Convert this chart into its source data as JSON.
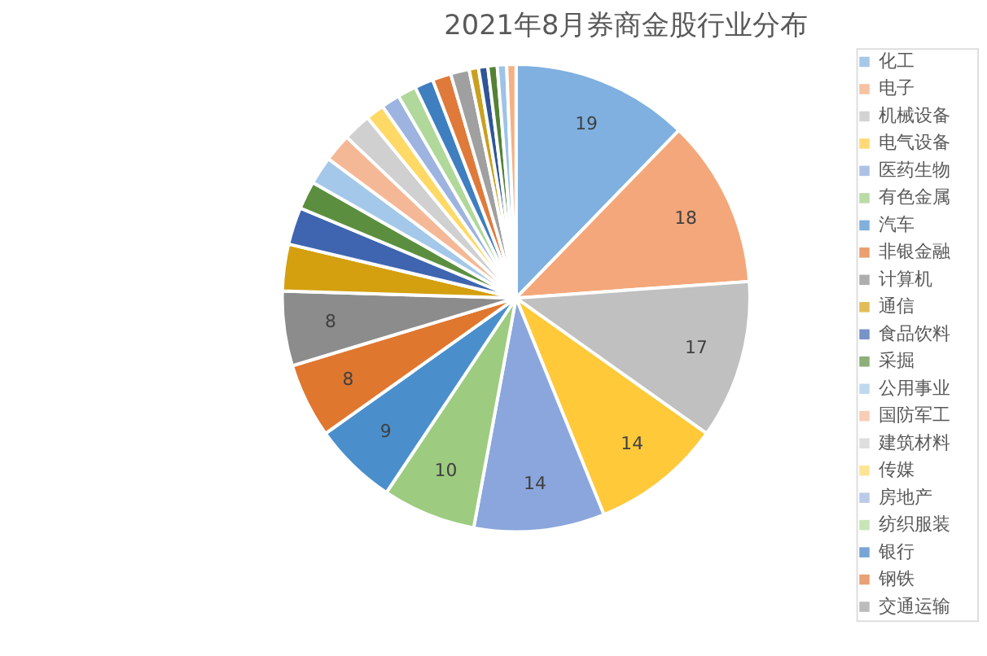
{
  "chart_data": {
    "type": "pie",
    "title": "2021年8月券商金股行业分布",
    "categories": [
      "化工",
      "电子",
      "机械设备",
      "电气设备",
      "医药生物",
      "有色金属",
      "汽车",
      "非银金融",
      "计算机",
      "通信",
      "食品饮料",
      "采掘",
      "公用事业",
      "国防军工",
      "建筑材料",
      "传媒",
      "房地产",
      "纺织服装",
      "银行",
      "钢铁",
      "交通运输",
      null,
      null,
      null,
      null,
      null
    ],
    "values": [
      19,
      18,
      17,
      14,
      14,
      10,
      9,
      8,
      8,
      5,
      4,
      3,
      3,
      3,
      3,
      2,
      2,
      2,
      2,
      2,
      2,
      1,
      1,
      1,
      1,
      1
    ],
    "value_labels": [
      "19",
      "18",
      "17",
      "14",
      "14",
      "10",
      "9",
      "8",
      "8",
      null,
      null,
      null,
      null,
      null,
      null,
      null,
      null,
      null,
      null,
      null,
      null,
      null,
      null,
      null,
      null,
      null
    ],
    "colors": [
      "#7fb0e0",
      "#f4a77a",
      "#c0c0c0",
      "#ffc93a",
      "#8aa6dc",
      "#9dcb80",
      "#4a8fcc",
      "#e0772f",
      "#8c8c8c",
      "#d4a010",
      "#3f65b0",
      "#5b8f3f",
      "#a4c8ea",
      "#f5b896",
      "#d0d0d0",
      "#ffd966",
      "#9db4e0",
      "#b0d89a",
      "#3f7fc0",
      "#e07a3a",
      "#a0a0a0",
      "#c9a020",
      "#2f5597",
      "#548235",
      "#9dc3e6",
      "#f4b183"
    ],
    "legend": "right"
  }
}
